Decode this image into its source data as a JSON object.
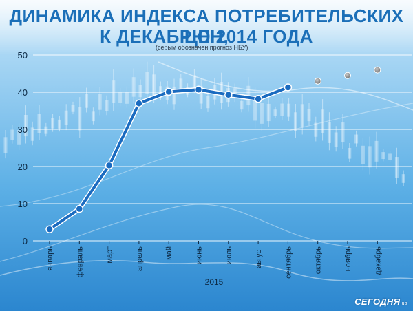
{
  "title_line1": "ДИНАМИКА ИНДЕКСА ПОТРЕБИТЕЛЬСКИХ ЦЕН,",
  "title_line2": "К ДЕКАБРЮ 2014 ГОДА",
  "subtitle": "(серым обозначен прогноз НБУ)",
  "brand": "СЕГОДНЯ",
  "brand_suffix": ".ua",
  "colors": {
    "title": "#1b6fb8",
    "line": "#1a6bc0",
    "forecast_point": "#8c8c8c",
    "background_top": "#9fd0f2",
    "background_bottom": "#2f8fd4"
  },
  "chart_data": {
    "type": "line",
    "xlabel": "2015",
    "ylabel": "",
    "ylim": [
      0,
      50
    ],
    "yticks": [
      0,
      10,
      20,
      30,
      40,
      50
    ],
    "categories": [
      "январь",
      "февраль",
      "март",
      "апрель",
      "май",
      "июнь",
      "июль",
      "август",
      "сентябрь",
      "октябрь",
      "ноябрь",
      "декабрь"
    ],
    "grid": true,
    "series": [
      {
        "values": [
          3.1,
          8.6,
          20.3,
          37.0,
          40.1,
          40.7,
          39.3,
          38.2,
          41.3,
          null,
          null,
          null
        ]
      },
      {
        "values": [
          null,
          null,
          null,
          null,
          null,
          null,
          null,
          null,
          null,
          43.0,
          44.5,
          46.0
        ]
      }
    ]
  }
}
